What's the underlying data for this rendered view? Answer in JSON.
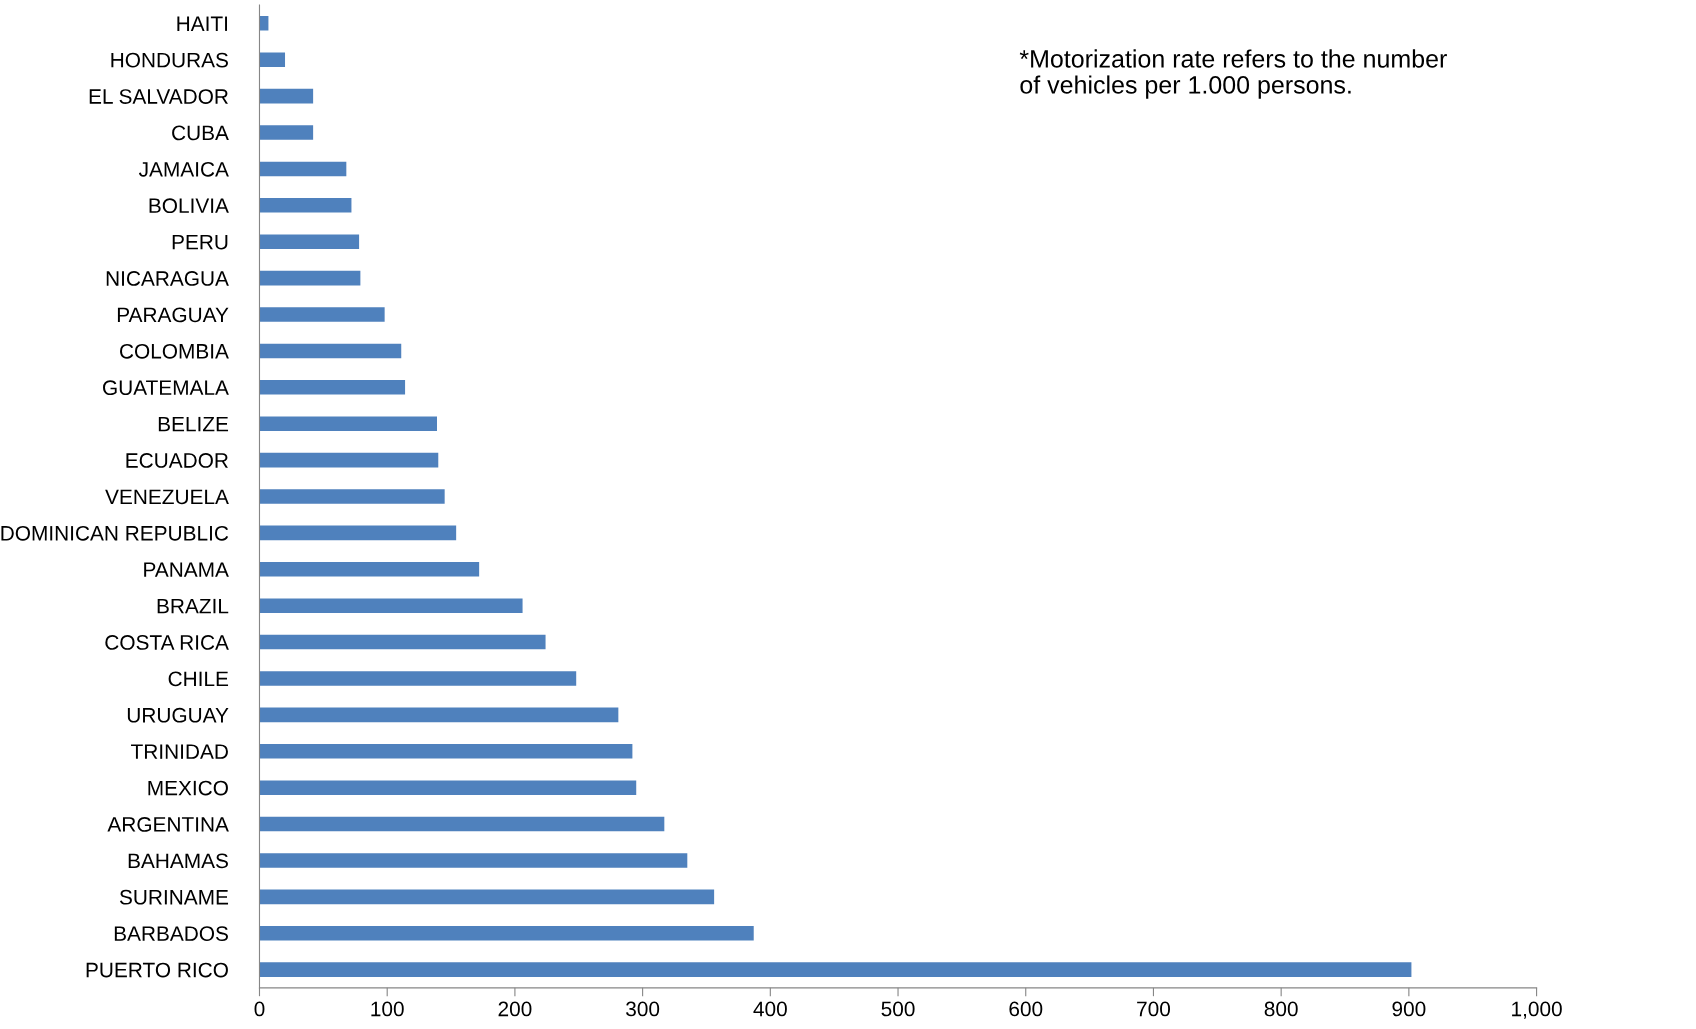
{
  "chart_data": {
    "type": "bar",
    "orientation": "horizontal",
    "color": "#4f81bd",
    "categories": [
      "HAITI",
      "HONDURAS",
      "EL SALVADOR",
      "CUBA",
      "JAMAICA",
      "BOLIVIA",
      "PERU",
      "NICARAGUA",
      "PARAGUAY",
      "COLOMBIA",
      "GUATEMALA",
      "BELIZE",
      "ECUADOR",
      "VENEZUELA",
      "DOMINICAN REPUBLIC",
      "PANAMA",
      "BRAZIL",
      "COSTA RICA",
      "CHILE",
      "URUGUAY",
      "TRINIDAD",
      "MEXICO",
      "ARGENTINA",
      "BAHAMAS",
      "SURINAME",
      "BARBADOS",
      "PUERTO RICO"
    ],
    "values": [
      7,
      20,
      42,
      42,
      68,
      72,
      78,
      79,
      98,
      111,
      114,
      139,
      140,
      145,
      154,
      172,
      206,
      224,
      248,
      281,
      292,
      295,
      317,
      335,
      356,
      387,
      902
    ],
    "xlim": [
      0,
      1000
    ],
    "xticks": [
      0,
      100,
      200,
      300,
      400,
      500,
      600,
      700,
      800,
      900,
      {
        "value": 1000,
        "label": "1,000"
      }
    ],
    "grid": false,
    "annotations": [
      "*Motorization rate refers to the number\nof vehicles per 1.000 persons."
    ]
  }
}
